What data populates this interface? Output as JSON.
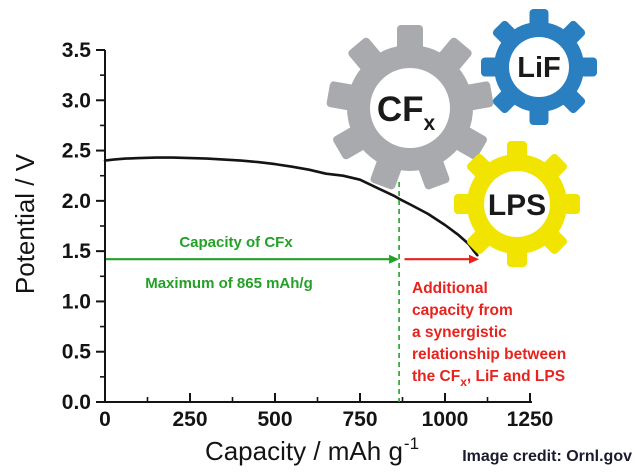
{
  "figure": {
    "credit": "Image credit: Ornl.gov",
    "credit_color": "#1b1b2f",
    "background": "#ffffff",
    "axis_color": "#141414"
  },
  "chart_data": {
    "type": "line",
    "title": "",
    "xlabel_parts": {
      "main": "Capacity / mAh g",
      "sup": "-1"
    },
    "ylabel": "Potential / V",
    "xlim": [
      0,
      1250
    ],
    "ylim": [
      0.0,
      3.5
    ],
    "x_ticks": [
      0,
      250,
      500,
      750,
      1000,
      1250
    ],
    "y_ticks": [
      "0.0",
      "0.5",
      "1.0",
      "1.5",
      "2.0",
      "2.5",
      "3.0",
      "3.5"
    ],
    "x_minor_step": 125,
    "y_minor_step": 0.25,
    "grid": false,
    "legend": "none",
    "series": [
      {
        "name": "discharge-curve",
        "color": "#141414",
        "points": [
          [
            0,
            2.4
          ],
          [
            25,
            2.41
          ],
          [
            60,
            2.42
          ],
          [
            100,
            2.425
          ],
          [
            150,
            2.43
          ],
          [
            200,
            2.43
          ],
          [
            250,
            2.425
          ],
          [
            300,
            2.42
          ],
          [
            350,
            2.41
          ],
          [
            400,
            2.4
          ],
          [
            450,
            2.385
          ],
          [
            500,
            2.365
          ],
          [
            550,
            2.34
          ],
          [
            600,
            2.31
          ],
          [
            650,
            2.27
          ],
          [
            700,
            2.25
          ],
          [
            750,
            2.21
          ],
          [
            800,
            2.13
          ],
          [
            850,
            2.05
          ],
          [
            865,
            2.02
          ],
          [
            900,
            1.96
          ],
          [
            950,
            1.87
          ],
          [
            1000,
            1.76
          ],
          [
            1040,
            1.66
          ],
          [
            1070,
            1.57
          ],
          [
            1085,
            1.5
          ],
          [
            1095,
            1.46
          ]
        ]
      }
    ],
    "annotations": {
      "green_color": "#23a127",
      "green_label_top": "Capacity of CFx",
      "green_label_bottom": "Maximum of 865 mAh/g",
      "green_arrow": {
        "from_x": 0,
        "to_x": 865,
        "y": 1.42
      },
      "dashed_line_x": 865,
      "red_color": "#e8231e",
      "red_arrow": {
        "from_x": 875,
        "to_x": 1100,
        "y": 1.42
      },
      "red_note_lines": [
        "Additional",
        "capacity from",
        "a synergistic",
        "relationship between"
      ],
      "red_note_last": {
        "pre": "the CF",
        "sub": "x",
        "post": ", LiF and LPS"
      }
    }
  },
  "gears": [
    {
      "id": "cfx",
      "label_main": "CF",
      "label_sub": "x",
      "color": "#a8aaad"
    },
    {
      "id": "lif",
      "label_main": "LiF",
      "label_sub": "",
      "color": "#2a7fc1"
    },
    {
      "id": "lps",
      "label_main": "LPS",
      "label_sub": "",
      "color": "#f0e400"
    }
  ]
}
